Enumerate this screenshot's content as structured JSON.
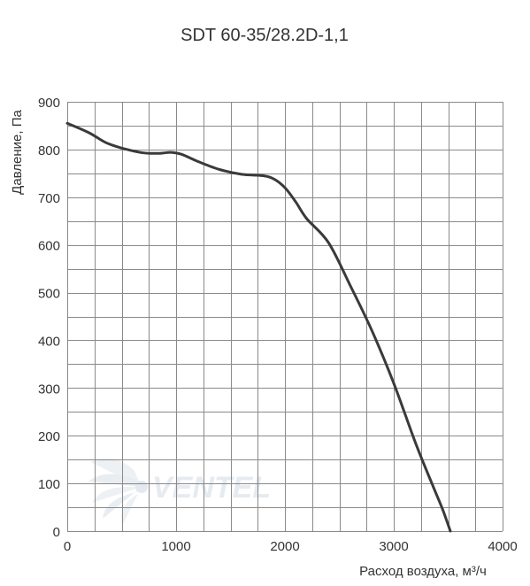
{
  "chart_data": {
    "type": "line",
    "title": "SDT 60-35/28.2D-1,1",
    "xlabel": "Расход воздуха, м³/ч",
    "ylabel": "Давление, Па",
    "xlim": [
      0,
      4000
    ],
    "ylim": [
      0,
      900
    ],
    "x_ticks": [
      "0",
      "1000",
      "2000",
      "3000",
      "4000"
    ],
    "y_ticks": [
      "0",
      "100",
      "200",
      "300",
      "400",
      "500",
      "600",
      "700",
      "800",
      "900"
    ],
    "grid": true,
    "series": [
      {
        "values_xy": [
          [
            0,
            855
          ],
          [
            200,
            835
          ],
          [
            350,
            815
          ],
          [
            500,
            803
          ],
          [
            700,
            793
          ],
          [
            850,
            792
          ],
          [
            950,
            794
          ],
          [
            1050,
            790
          ],
          [
            1200,
            775
          ],
          [
            1400,
            758
          ],
          [
            1600,
            748
          ],
          [
            1800,
            745
          ],
          [
            1900,
            738
          ],
          [
            2000,
            720
          ],
          [
            2100,
            690
          ],
          [
            2200,
            655
          ],
          [
            2400,
            605
          ],
          [
            2600,
            515
          ],
          [
            2800,
            420
          ],
          [
            3000,
            310
          ],
          [
            3200,
            185
          ],
          [
            3350,
            100
          ],
          [
            3450,
            45
          ],
          [
            3520,
            0
          ]
        ]
      }
    ]
  },
  "watermark": {
    "logo_text": "VENTEL",
    "icon": "fan-logo-icon"
  },
  "colors": {
    "curve": "#3a3a3a",
    "grid": "#8a8a8a",
    "text": "#333333"
  }
}
